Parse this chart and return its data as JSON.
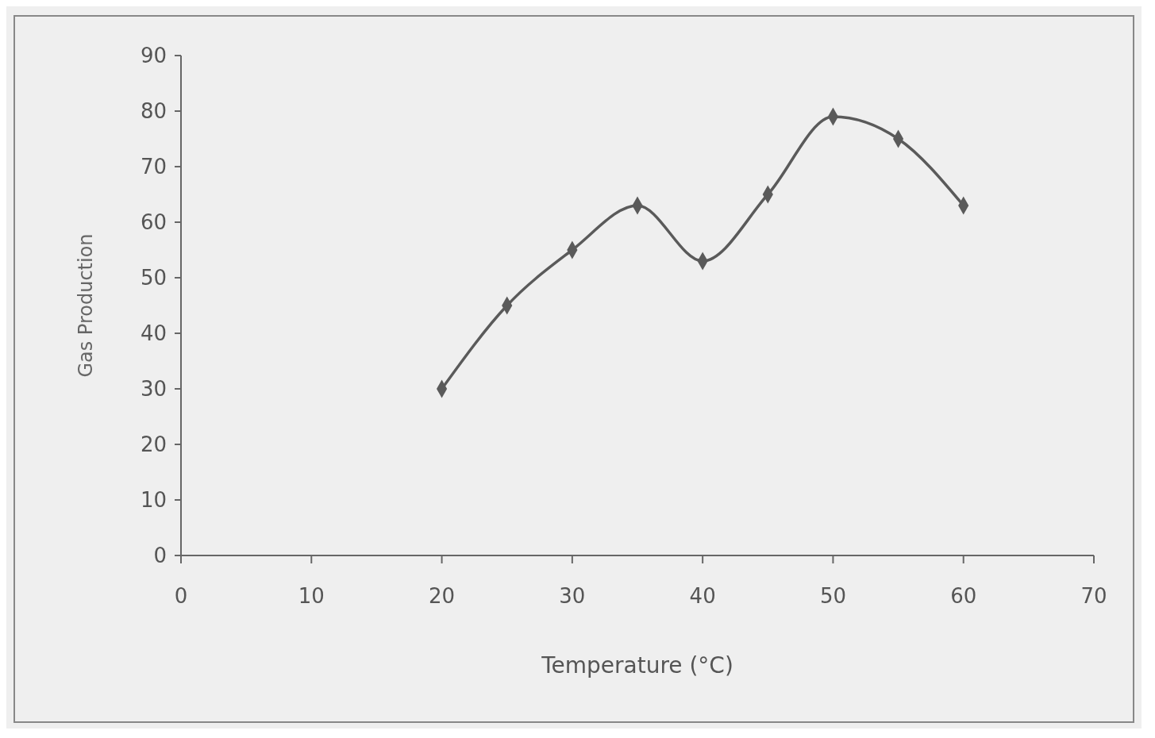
{
  "chart_data": {
    "type": "line",
    "xlabel": "Temperature (°C)",
    "ylabel": "Gas Production",
    "x": [
      20,
      25,
      30,
      35,
      40,
      45,
      50,
      55,
      60
    ],
    "series": [
      {
        "color": "#5a5a5a",
        "values": [
          30,
          45,
          55,
          63,
          53,
          65,
          79,
          75,
          63
        ]
      }
    ],
    "xlim": [
      0,
      70
    ],
    "xticks": [
      0,
      10,
      20,
      30,
      40,
      50,
      60,
      70
    ],
    "ylim": [
      0,
      90
    ],
    "yticks": [
      0,
      10,
      20,
      30,
      40,
      50,
      60,
      70,
      80,
      90
    ],
    "grid": false,
    "marker": "diamond",
    "line_style": "solid"
  }
}
